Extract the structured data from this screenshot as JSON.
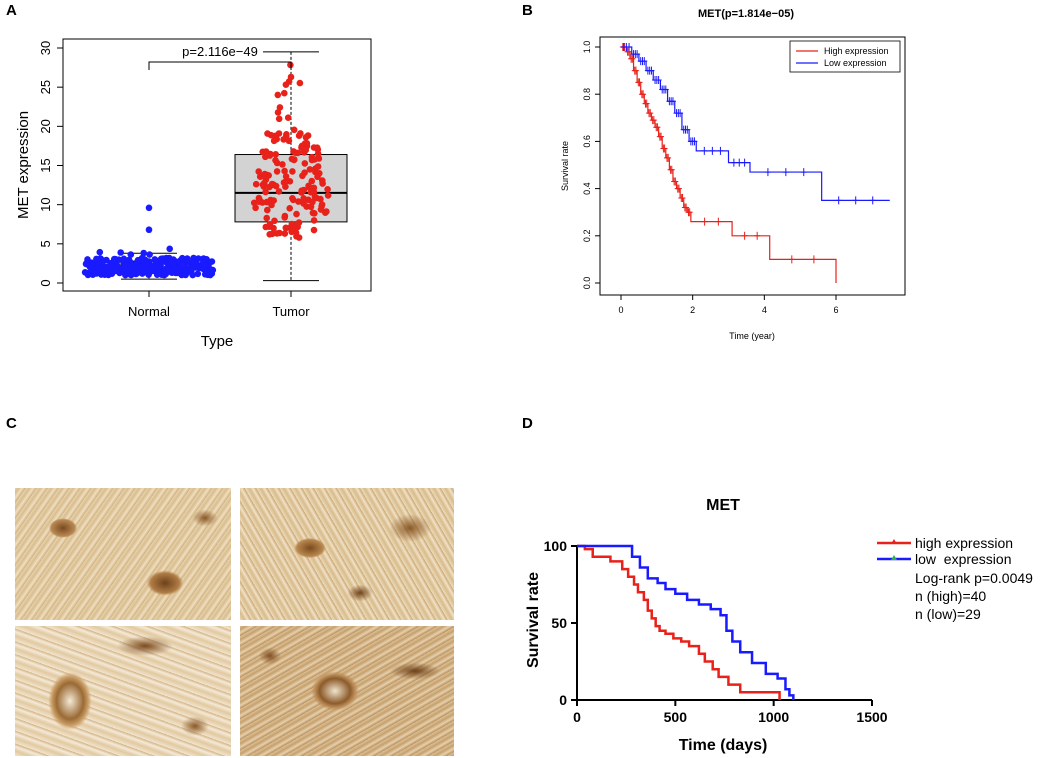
{
  "panels": {
    "A": {
      "letter": "A",
      "chart_data": {
        "type": "box+beeswarm",
        "title": "",
        "xlabel": "Type",
        "ylabel": "MET expression",
        "categories": [
          "Normal",
          "Tumor"
        ],
        "ylim": [
          0,
          30
        ],
        "yticks": [
          0,
          5,
          10,
          15,
          20,
          25,
          30
        ],
        "boxes": [
          {
            "name": "Normal",
            "min": 0.5,
            "q1": 1.6,
            "median": 2.0,
            "q3": 2.8,
            "max": 3.8,
            "color": "#1a1aff"
          },
          {
            "name": "Tumor",
            "min": 0.3,
            "q1": 7.8,
            "median": 11.5,
            "q3": 16.4,
            "max": 29.5,
            "color": "#e8211a"
          }
        ],
        "annotation": "p=2.116e−49"
      }
    },
    "B": {
      "letter": "B",
      "chart_data": {
        "type": "line",
        "title": "MET(p=1.814e−05)",
        "xlabel": "Time (year)",
        "ylabel": "Survival rate",
        "xlim": [
          0,
          7.5
        ],
        "ylim": [
          0,
          1
        ],
        "xticks": [
          0,
          2,
          4,
          6
        ],
        "yticks": [
          "0.0",
          "0.2",
          "0.4",
          "0.6",
          "0.8",
          "1.0"
        ],
        "legend": [
          "High expression",
          "Low expression"
        ],
        "series": [
          {
            "name": "High expression",
            "color": "#e8211a",
            "x": [
              0,
              0.15,
              0.25,
              0.35,
              0.45,
              0.55,
              0.65,
              0.75,
              0.85,
              0.95,
              1.05,
              1.15,
              1.25,
              1.35,
              1.45,
              1.55,
              1.65,
              1.75,
              1.85,
              1.95,
              3.1,
              4.15,
              6.0
            ],
            "y": [
              1.0,
              0.98,
              0.95,
              0.9,
              0.85,
              0.8,
              0.76,
              0.72,
              0.69,
              0.66,
              0.62,
              0.57,
              0.53,
              0.48,
              0.43,
              0.4,
              0.36,
              0.32,
              0.3,
              0.26,
              0.2,
              0.1,
              0.0
            ]
          },
          {
            "name": "Low expression",
            "color": "#1a1aff",
            "x": [
              0,
              0.3,
              0.5,
              0.7,
              0.9,
              1.1,
              1.3,
              1.5,
              1.7,
              1.9,
              2.1,
              3.0,
              3.6,
              5.6,
              7.5
            ],
            "y": [
              1.0,
              0.97,
              0.94,
              0.9,
              0.86,
              0.82,
              0.77,
              0.72,
              0.65,
              0.6,
              0.56,
              0.51,
              0.47,
              0.35,
              0.35
            ]
          }
        ]
      }
    },
    "C": {
      "letter": "C",
      "images": [
        "ihc-image-top-left",
        "ihc-image-top-right",
        "ihc-image-bottom-left",
        "ihc-image-bottom-right"
      ]
    },
    "D": {
      "letter": "D",
      "chart_data": {
        "type": "line",
        "title": "MET",
        "xlabel": "Time (days)",
        "ylabel": "Survival rate",
        "xlim": [
          0,
          1500
        ],
        "ylim": [
          0,
          100
        ],
        "xticks": [
          0,
          500,
          1000,
          1500
        ],
        "yticks": [
          0,
          50,
          100
        ],
        "legend": [
          "high expression",
          "low  expression"
        ],
        "annotations": [
          "Log-rank p=0.0049",
          "n (high)=40",
          "n (low)=29"
        ],
        "series": [
          {
            "name": "high expression",
            "color": "#e8211a",
            "x": [
              0,
              40,
              80,
              170,
              230,
              260,
              290,
              310,
              340,
              360,
              380,
              400,
              420,
              450,
              490,
              530,
              570,
              620,
              650,
              690,
              720,
              770,
              830,
              1000,
              1030
            ],
            "y": [
              100,
              98,
              93,
              90,
              85,
              80,
              75,
              70,
              65,
              58,
              53,
              48,
              45,
              43,
              40,
              38,
              35,
              30,
              25,
              20,
              15,
              10,
              5,
              5,
              0
            ]
          },
          {
            "name": "low  expression",
            "color": "#1a1aff",
            "x": [
              0,
              130,
              280,
              320,
              360,
              410,
              450,
              500,
              560,
              620,
              680,
              730,
              760,
              790,
              830,
              890,
              960,
              1020,
              1060,
              1080,
              1100
            ],
            "y": [
              100,
              100,
              93,
              86,
              79,
              76,
              72,
              69,
              65,
              62,
              59,
              55,
              45,
              38,
              31,
              24,
              17,
              14,
              7,
              3,
              0
            ]
          }
        ]
      }
    }
  }
}
